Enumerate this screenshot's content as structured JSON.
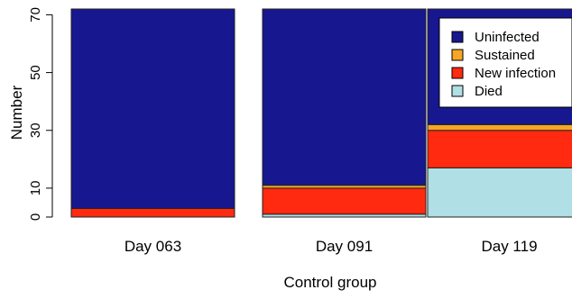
{
  "chart_data": {
    "type": "bar",
    "stacked": true,
    "xlabel": "Control group",
    "ylabel": "Number",
    "ylim": [
      0,
      72
    ],
    "yticks": [
      0,
      10,
      30,
      50,
      70
    ],
    "categories": [
      "Day 063",
      "Day 091",
      "Day 119"
    ],
    "series": [
      {
        "name": "Died",
        "color": "#b0dfe5",
        "values": [
          0,
          1,
          17
        ]
      },
      {
        "name": "New infection",
        "color": "#ff2a0f",
        "values": [
          3,
          9,
          13
        ]
      },
      {
        "name": "Sustained",
        "color": "#f5a623",
        "values": [
          0,
          1,
          2
        ]
      },
      {
        "name": "Uninfected",
        "color": "#17178f",
        "values": [
          69,
          61,
          40
        ]
      }
    ],
    "legend_order": [
      "Uninfected",
      "Sustained",
      "New infection",
      "Died"
    ],
    "legend_position": "top-right"
  }
}
